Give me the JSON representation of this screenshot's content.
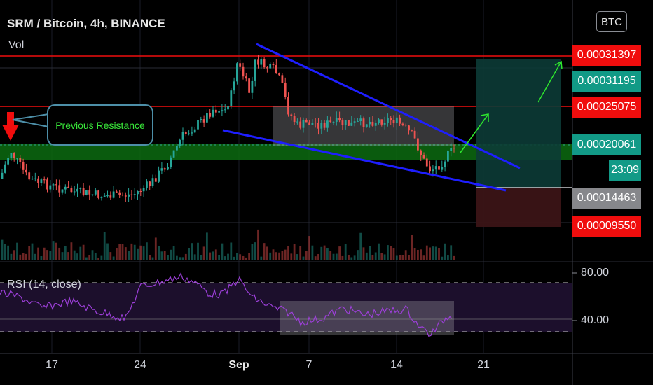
{
  "header": {
    "title": "SRM / Bitcoin, 4h, BINANCE",
    "volume_label": "Vol",
    "currency_button": "BTC"
  },
  "price_scale": {
    "tags": [
      "0.00031397",
      "0.00031195",
      "0.00025075",
      "0.00020061",
      "23:09",
      "0.00014463",
      "0.00009550"
    ],
    "tag_colors": {
      "resistance": "#f00d0d",
      "current": "#129a87",
      "stop": "#86878b"
    }
  },
  "annotation": {
    "label": "Previous Resistance",
    "text_color": "#39e83a"
  },
  "rsi": {
    "label": "RSI (14, close)",
    "levels": [
      "80.00",
      "40.00"
    ],
    "line_color": "#9c3fd8"
  },
  "time_axis": {
    "ticks": [
      "17",
      "24",
      "Sep",
      "7",
      "14",
      "21"
    ]
  },
  "colors": {
    "candle_up": "#26a69a",
    "candle_down": "#ef5350",
    "trendline": "#1e1eff",
    "target_arrow": "#2ee82e",
    "support_band": "#0c6b10"
  }
}
